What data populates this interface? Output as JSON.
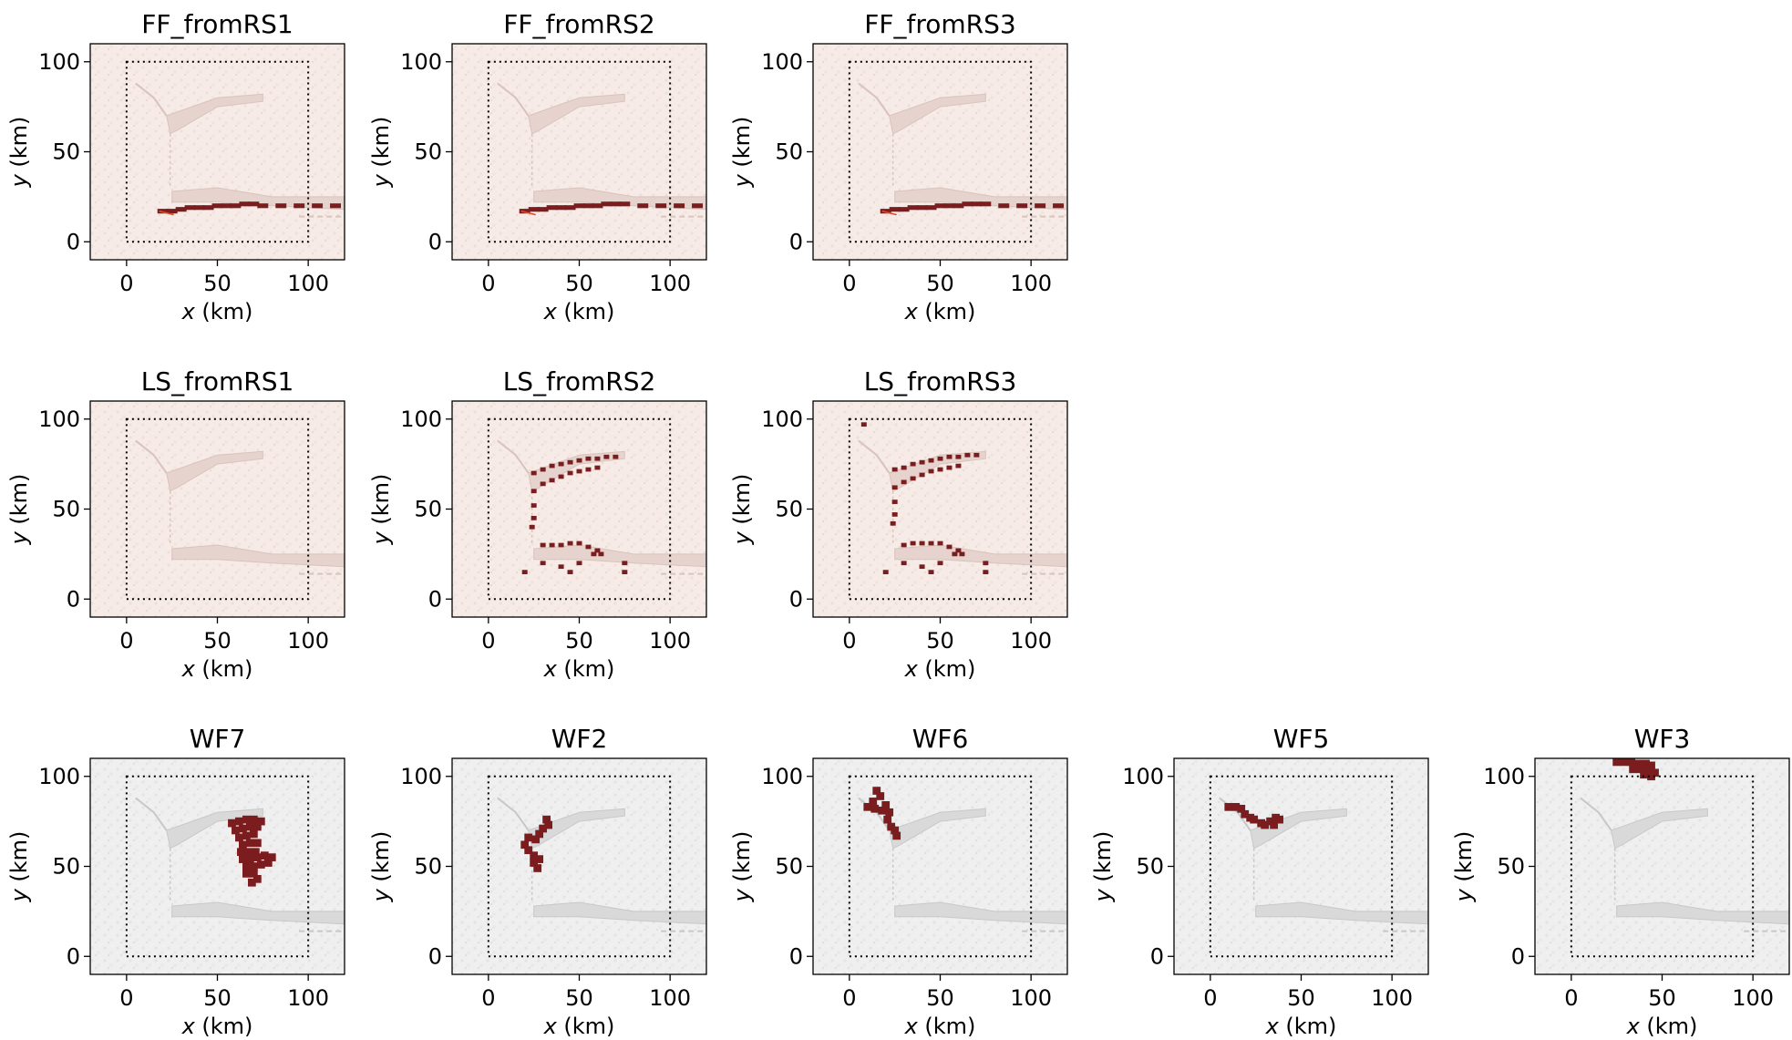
{
  "figure": {
    "xlabel": "x (km)",
    "ylabel": "y (km)",
    "xlim": [
      -20,
      120
    ],
    "ylim": [
      -10,
      110
    ],
    "xticks": [
      0,
      50,
      100
    ],
    "yticks": [
      0,
      50,
      100
    ],
    "domain_box": [
      0,
      100,
      0,
      100
    ],
    "colors": {
      "hazard_red": "#7b1c1f",
      "pink_background": "#f6ebe6",
      "gray_background": "#ececec",
      "rivers": "#d8d8d8"
    }
  },
  "chart_data": [
    {
      "type": "heatmap",
      "title": "FF_fromRS1",
      "background": "pink",
      "hazard": "flood",
      "xlim": [
        -20,
        120
      ],
      "ylim": [
        -10,
        110
      ],
      "cells": [
        [
          20,
          17
        ],
        [
          25,
          17
        ],
        [
          30,
          18
        ],
        [
          35,
          19
        ],
        [
          40,
          19
        ],
        [
          45,
          19
        ],
        [
          50,
          20
        ],
        [
          55,
          20
        ],
        [
          60,
          20
        ],
        [
          65,
          21
        ],
        [
          70,
          21
        ],
        [
          75,
          20
        ],
        [
          85,
          20
        ],
        [
          95,
          20
        ],
        [
          105,
          20
        ],
        [
          115,
          20
        ]
      ]
    },
    {
      "type": "heatmap",
      "title": "FF_fromRS2",
      "background": "pink",
      "hazard": "flood",
      "xlim": [
        -20,
        120
      ],
      "ylim": [
        -10,
        110
      ],
      "cells": [
        [
          20,
          17
        ],
        [
          25,
          18
        ],
        [
          30,
          18
        ],
        [
          35,
          19
        ],
        [
          40,
          19
        ],
        [
          45,
          19
        ],
        [
          50,
          20
        ],
        [
          55,
          20
        ],
        [
          60,
          20
        ],
        [
          65,
          21
        ],
        [
          70,
          21
        ],
        [
          75,
          21
        ],
        [
          85,
          20
        ],
        [
          95,
          20
        ],
        [
          105,
          20
        ],
        [
          115,
          20
        ]
      ]
    },
    {
      "type": "heatmap",
      "title": "FF_fromRS3",
      "background": "pink",
      "hazard": "flood",
      "xlim": [
        -20,
        120
      ],
      "ylim": [
        -10,
        110
      ],
      "cells": [
        [
          20,
          17
        ],
        [
          25,
          18
        ],
        [
          30,
          18
        ],
        [
          35,
          19
        ],
        [
          40,
          19
        ],
        [
          45,
          19
        ],
        [
          50,
          20
        ],
        [
          55,
          20
        ],
        [
          60,
          20
        ],
        [
          65,
          21
        ],
        [
          70,
          21
        ],
        [
          75,
          21
        ],
        [
          85,
          20
        ],
        [
          95,
          20
        ],
        [
          105,
          20
        ],
        [
          115,
          20
        ]
      ]
    },
    {
      "type": "heatmap",
      "title": "LS_fromRS1",
      "background": "pink",
      "hazard": "landslide",
      "xlim": [
        -20,
        120
      ],
      "ylim": [
        -10,
        110
      ],
      "cells": []
    },
    {
      "type": "heatmap",
      "title": "LS_fromRS2",
      "background": "pink",
      "hazard": "landslide",
      "xlim": [
        -20,
        120
      ],
      "ylim": [
        -10,
        110
      ],
      "cells": [
        [
          25,
          70
        ],
        [
          30,
          72
        ],
        [
          35,
          74
        ],
        [
          40,
          75
        ],
        [
          45,
          76
        ],
        [
          50,
          77
        ],
        [
          55,
          78
        ],
        [
          60,
          78
        ],
        [
          65,
          79
        ],
        [
          70,
          79
        ],
        [
          25,
          60
        ],
        [
          30,
          64
        ],
        [
          35,
          66
        ],
        [
          40,
          68
        ],
        [
          45,
          70
        ],
        [
          50,
          71
        ],
        [
          55,
          72
        ],
        [
          60,
          73
        ],
        [
          25,
          45
        ],
        [
          25,
          52
        ],
        [
          24,
          40
        ],
        [
          30,
          30
        ],
        [
          35,
          30
        ],
        [
          40,
          30
        ],
        [
          45,
          31
        ],
        [
          50,
          31
        ],
        [
          55,
          29
        ],
        [
          60,
          27
        ],
        [
          58,
          25
        ],
        [
          62,
          25
        ],
        [
          50,
          20
        ],
        [
          30,
          20
        ],
        [
          40,
          18
        ],
        [
          20,
          15
        ],
        [
          45,
          15
        ],
        [
          75,
          20
        ],
        [
          75,
          15
        ]
      ]
    },
    {
      "type": "heatmap",
      "title": "LS_fromRS3",
      "background": "pink",
      "hazard": "landslide",
      "xlim": [
        -20,
        120
      ],
      "ylim": [
        -10,
        110
      ],
      "cells": [
        [
          25,
          72
        ],
        [
          30,
          73
        ],
        [
          35,
          75
        ],
        [
          40,
          76
        ],
        [
          45,
          77
        ],
        [
          50,
          78
        ],
        [
          55,
          79
        ],
        [
          60,
          79
        ],
        [
          65,
          80
        ],
        [
          70,
          80
        ],
        [
          25,
          62
        ],
        [
          30,
          65
        ],
        [
          35,
          67
        ],
        [
          40,
          69
        ],
        [
          45,
          71
        ],
        [
          50,
          72
        ],
        [
          55,
          73
        ],
        [
          60,
          74
        ],
        [
          25,
          47
        ],
        [
          25,
          54
        ],
        [
          24,
          42
        ],
        [
          30,
          30
        ],
        [
          35,
          31
        ],
        [
          40,
          31
        ],
        [
          45,
          31
        ],
        [
          50,
          31
        ],
        [
          55,
          29
        ],
        [
          60,
          27
        ],
        [
          58,
          25
        ],
        [
          62,
          25
        ],
        [
          50,
          20
        ],
        [
          30,
          20
        ],
        [
          40,
          18
        ],
        [
          20,
          15
        ],
        [
          45,
          15
        ],
        [
          75,
          20
        ],
        [
          75,
          15
        ],
        [
          8,
          97
        ]
      ]
    },
    {
      "type": "heatmap",
      "title": "WF7",
      "background": "gray",
      "hazard": "wildfire",
      "xlim": [
        -20,
        120
      ],
      "ylim": [
        -10,
        110
      ],
      "cells": [
        [
          58,
          74
        ],
        [
          62,
          75
        ],
        [
          66,
          76
        ],
        [
          70,
          76
        ],
        [
          74,
          75
        ],
        [
          60,
          70
        ],
        [
          64,
          71
        ],
        [
          68,
          72
        ],
        [
          72,
          72
        ],
        [
          62,
          66
        ],
        [
          66,
          67
        ],
        [
          70,
          68
        ],
        [
          64,
          62
        ],
        [
          68,
          63
        ],
        [
          72,
          63
        ],
        [
          63,
          58
        ],
        [
          67,
          58
        ],
        [
          71,
          58
        ],
        [
          64,
          54
        ],
        [
          68,
          54
        ],
        [
          72,
          55
        ],
        [
          76,
          56
        ],
        [
          80,
          55
        ],
        [
          66,
          50
        ],
        [
          70,
          50
        ],
        [
          74,
          51
        ],
        [
          78,
          52
        ],
        [
          66,
          46
        ],
        [
          70,
          46
        ],
        [
          72,
          43
        ],
        [
          69,
          41
        ]
      ]
    },
    {
      "type": "heatmap",
      "title": "WF2",
      "background": "gray",
      "hazard": "wildfire",
      "xlim": [
        -20,
        120
      ],
      "ylim": [
        -10,
        110
      ],
      "cells": [
        [
          32,
          76
        ],
        [
          33,
          73
        ],
        [
          30,
          71
        ],
        [
          28,
          68
        ],
        [
          26,
          65
        ],
        [
          22,
          66
        ],
        [
          20,
          62
        ],
        [
          22,
          59
        ],
        [
          25,
          56
        ],
        [
          28,
          54
        ],
        [
          25,
          52
        ],
        [
          27,
          49
        ]
      ]
    },
    {
      "type": "heatmap",
      "title": "WF6",
      "background": "gray",
      "hazard": "wildfire",
      "xlim": [
        -20,
        120
      ],
      "ylim": [
        -10,
        110
      ],
      "cells": [
        [
          15,
          92
        ],
        [
          17,
          89
        ],
        [
          13,
          86
        ],
        [
          10,
          83
        ],
        [
          14,
          82
        ],
        [
          18,
          81
        ],
        [
          20,
          84
        ],
        [
          22,
          80
        ],
        [
          21,
          76
        ],
        [
          23,
          72
        ],
        [
          25,
          70
        ],
        [
          26,
          67
        ]
      ]
    },
    {
      "type": "heatmap",
      "title": "WF5",
      "background": "gray",
      "hazard": "wildfire",
      "xlim": [
        -20,
        120
      ],
      "ylim": [
        -10,
        110
      ],
      "cells": [
        [
          10,
          83
        ],
        [
          14,
          83
        ],
        [
          17,
          82
        ],
        [
          19,
          79
        ],
        [
          22,
          77
        ],
        [
          24,
          76
        ],
        [
          28,
          74
        ],
        [
          33,
          75
        ],
        [
          36,
          77
        ],
        [
          38,
          76
        ],
        [
          35,
          73
        ],
        [
          30,
          73
        ]
      ]
    },
    {
      "type": "heatmap",
      "title": "WF3",
      "background": "gray",
      "hazard": "wildfire",
      "xlim": [
        -20,
        120
      ],
      "ylim": [
        -10,
        110
      ],
      "cells": [
        [
          25,
          108
        ],
        [
          29,
          108
        ],
        [
          33,
          108
        ],
        [
          37,
          107
        ],
        [
          41,
          107
        ],
        [
          44,
          106
        ],
        [
          34,
          104
        ],
        [
          38,
          104
        ],
        [
          42,
          103
        ],
        [
          46,
          102
        ],
        [
          40,
          101
        ],
        [
          44,
          100
        ]
      ]
    }
  ]
}
